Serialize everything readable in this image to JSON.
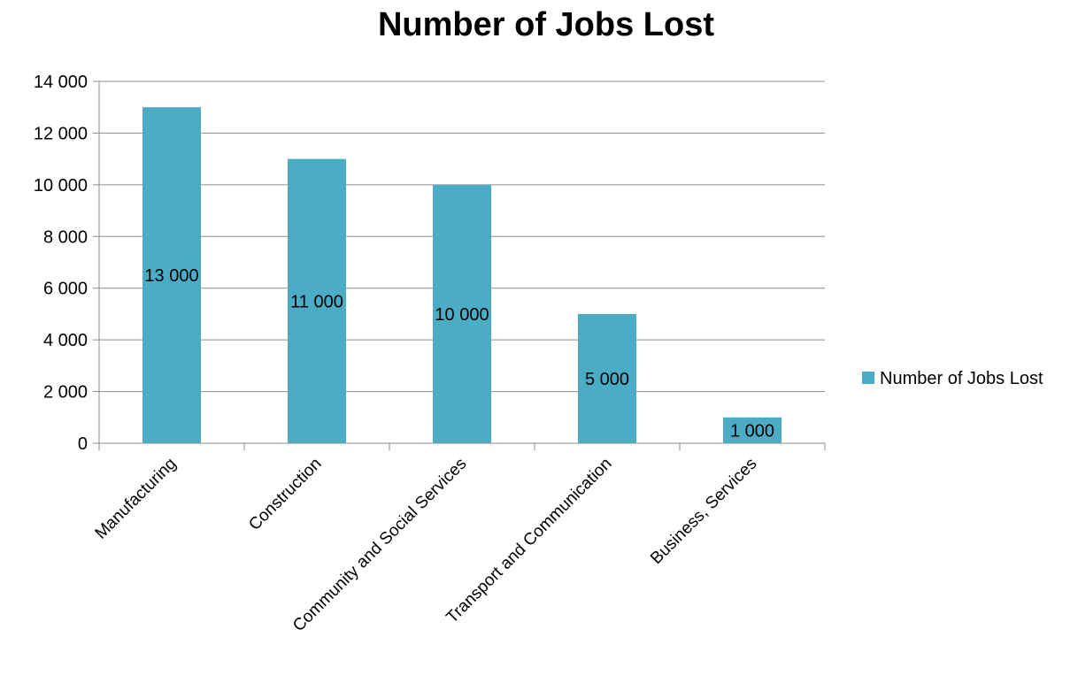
{
  "chart_data": {
    "type": "bar",
    "title": "Number of Jobs Lost",
    "categories": [
      "Manufacturing",
      "Construction",
      "Community and Social Services",
      "Transport and Communication",
      "Business, Services"
    ],
    "series": [
      {
        "name": "Number of Jobs Lost",
        "values": [
          13000,
          11000,
          10000,
          5000,
          1000
        ],
        "value_labels": [
          "13 000",
          "11 000",
          "10 000",
          "5 000",
          "1 000"
        ],
        "color": "#4bacc6"
      }
    ],
    "y_ticks": [
      "0",
      "2 000",
      "4 000",
      "6 000",
      "8 000",
      "10 000",
      "12 000",
      "14 000"
    ],
    "ylim": [
      0,
      14000
    ],
    "xlabel": "",
    "ylabel": "",
    "grid": true,
    "legend_position": "right",
    "colors": {
      "bar": "#4bacc6",
      "grid": "#8c8c8c",
      "axis": "#8c8c8c"
    }
  }
}
